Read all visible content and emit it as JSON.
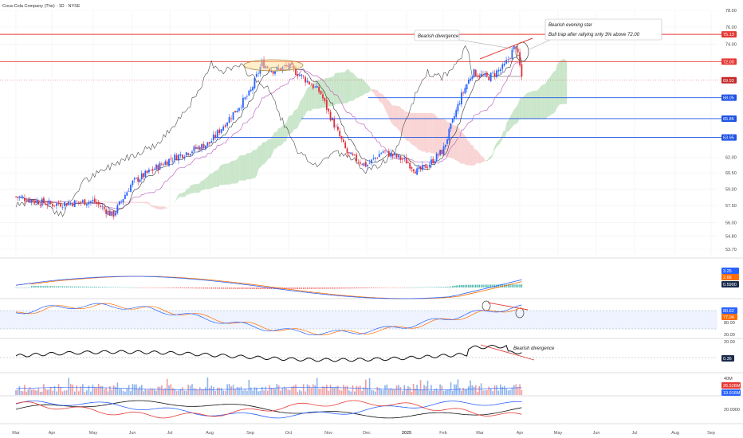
{
  "header": {
    "title": "Coca-Cola Company (The) · 1D · NYSE"
  },
  "colors": {
    "up": "#2962ff",
    "down": "#e0303a",
    "cloud_up": "#b8deb8",
    "cloud_down": "#f7c6c6",
    "resistance": "#e53935",
    "support": "#1e53e5",
    "conversion": "#111111",
    "base": "#c06ac0",
    "macd": "#2962ff",
    "signal": "#ff6d00",
    "hist_up": "#26a69a",
    "hist_down": "#ef5350"
  },
  "annotations": {
    "bearish_divergence_main": "Bearish divergence",
    "evening_star_title": "Bearish evening star",
    "evening_star_text": "Bull trap after rallying only 3% above 72.00",
    "bearish_divergence_osc": "Bearish divergence"
  },
  "chart_data": {
    "type": "candlestick",
    "title": "Coca-Cola Company (The) · 1D · NYSE",
    "x_months": [
      "Mar",
      "Apr",
      "May",
      "Jun",
      "Jul",
      "Aug",
      "Sep",
      "Oct",
      "Nov",
      "Dec",
      "2025",
      "Feb",
      "Mar",
      "Apr",
      "May",
      "Jun",
      "Jul",
      "Aug",
      "Sep"
    ],
    "y_ticks": [
      "78.00",
      "76.00",
      "74.00",
      "62.00",
      "60.50",
      "59.00",
      "57.50",
      "56.00",
      "54.80",
      "53.70"
    ],
    "y_scale": "log",
    "price_path": [
      [
        0,
        58.3
      ],
      [
        1,
        57.6
      ],
      [
        2,
        57.9
      ],
      [
        2.5,
        56.6
      ],
      [
        3,
        59.6
      ],
      [
        4,
        61.8
      ],
      [
        5,
        63.4
      ],
      [
        5.5,
        66.0
      ],
      [
        6,
        68.6
      ],
      [
        6.3,
        71.8
      ],
      [
        6.6,
        71.0
      ],
      [
        7,
        71.5
      ],
      [
        7.4,
        70.1
      ],
      [
        7.8,
        68.6
      ],
      [
        8,
        66.5
      ],
      [
        8.5,
        62.3
      ],
      [
        9,
        61.2
      ],
      [
        9.4,
        62.6
      ],
      [
        10,
        61.6
      ],
      [
        10.3,
        60.6
      ],
      [
        10.6,
        61.3
      ],
      [
        11,
        62.7
      ],
      [
        11.5,
        68.3
      ],
      [
        11.8,
        70.8
      ],
      [
        12.2,
        70.2
      ],
      [
        12.6,
        71.4
      ],
      [
        12.9,
        73.9
      ],
      [
        13.05,
        70.3
      ]
    ],
    "resistance_levels": [
      {
        "label": "75.13",
        "value": 75.13
      },
      {
        "label": "72.00",
        "value": 72.0
      }
    ],
    "support_levels": [
      {
        "label": "68.05",
        "value": 68.05
      },
      {
        "label": "65.86",
        "value": 65.86
      },
      {
        "label": "63.95",
        "value": 63.95
      }
    ],
    "last_price": {
      "label": "69.93",
      "value": 69.93
    },
    "macd_panel": {
      "macd": "3.25",
      "signal": "2.66",
      "histogram": "0.5900"
    },
    "stoch_panel": {
      "k": "80.62",
      "d": "77.04",
      "lower": "20.00",
      "upper": "80.00"
    },
    "osc_panel": {
      "level": "20.00",
      "value": "0.36"
    },
    "volume_panel": {
      "top": "40M",
      "volume": "26.526M",
      "ma": "19.916M"
    },
    "lines_panel": {
      "level": "20.0000"
    }
  }
}
